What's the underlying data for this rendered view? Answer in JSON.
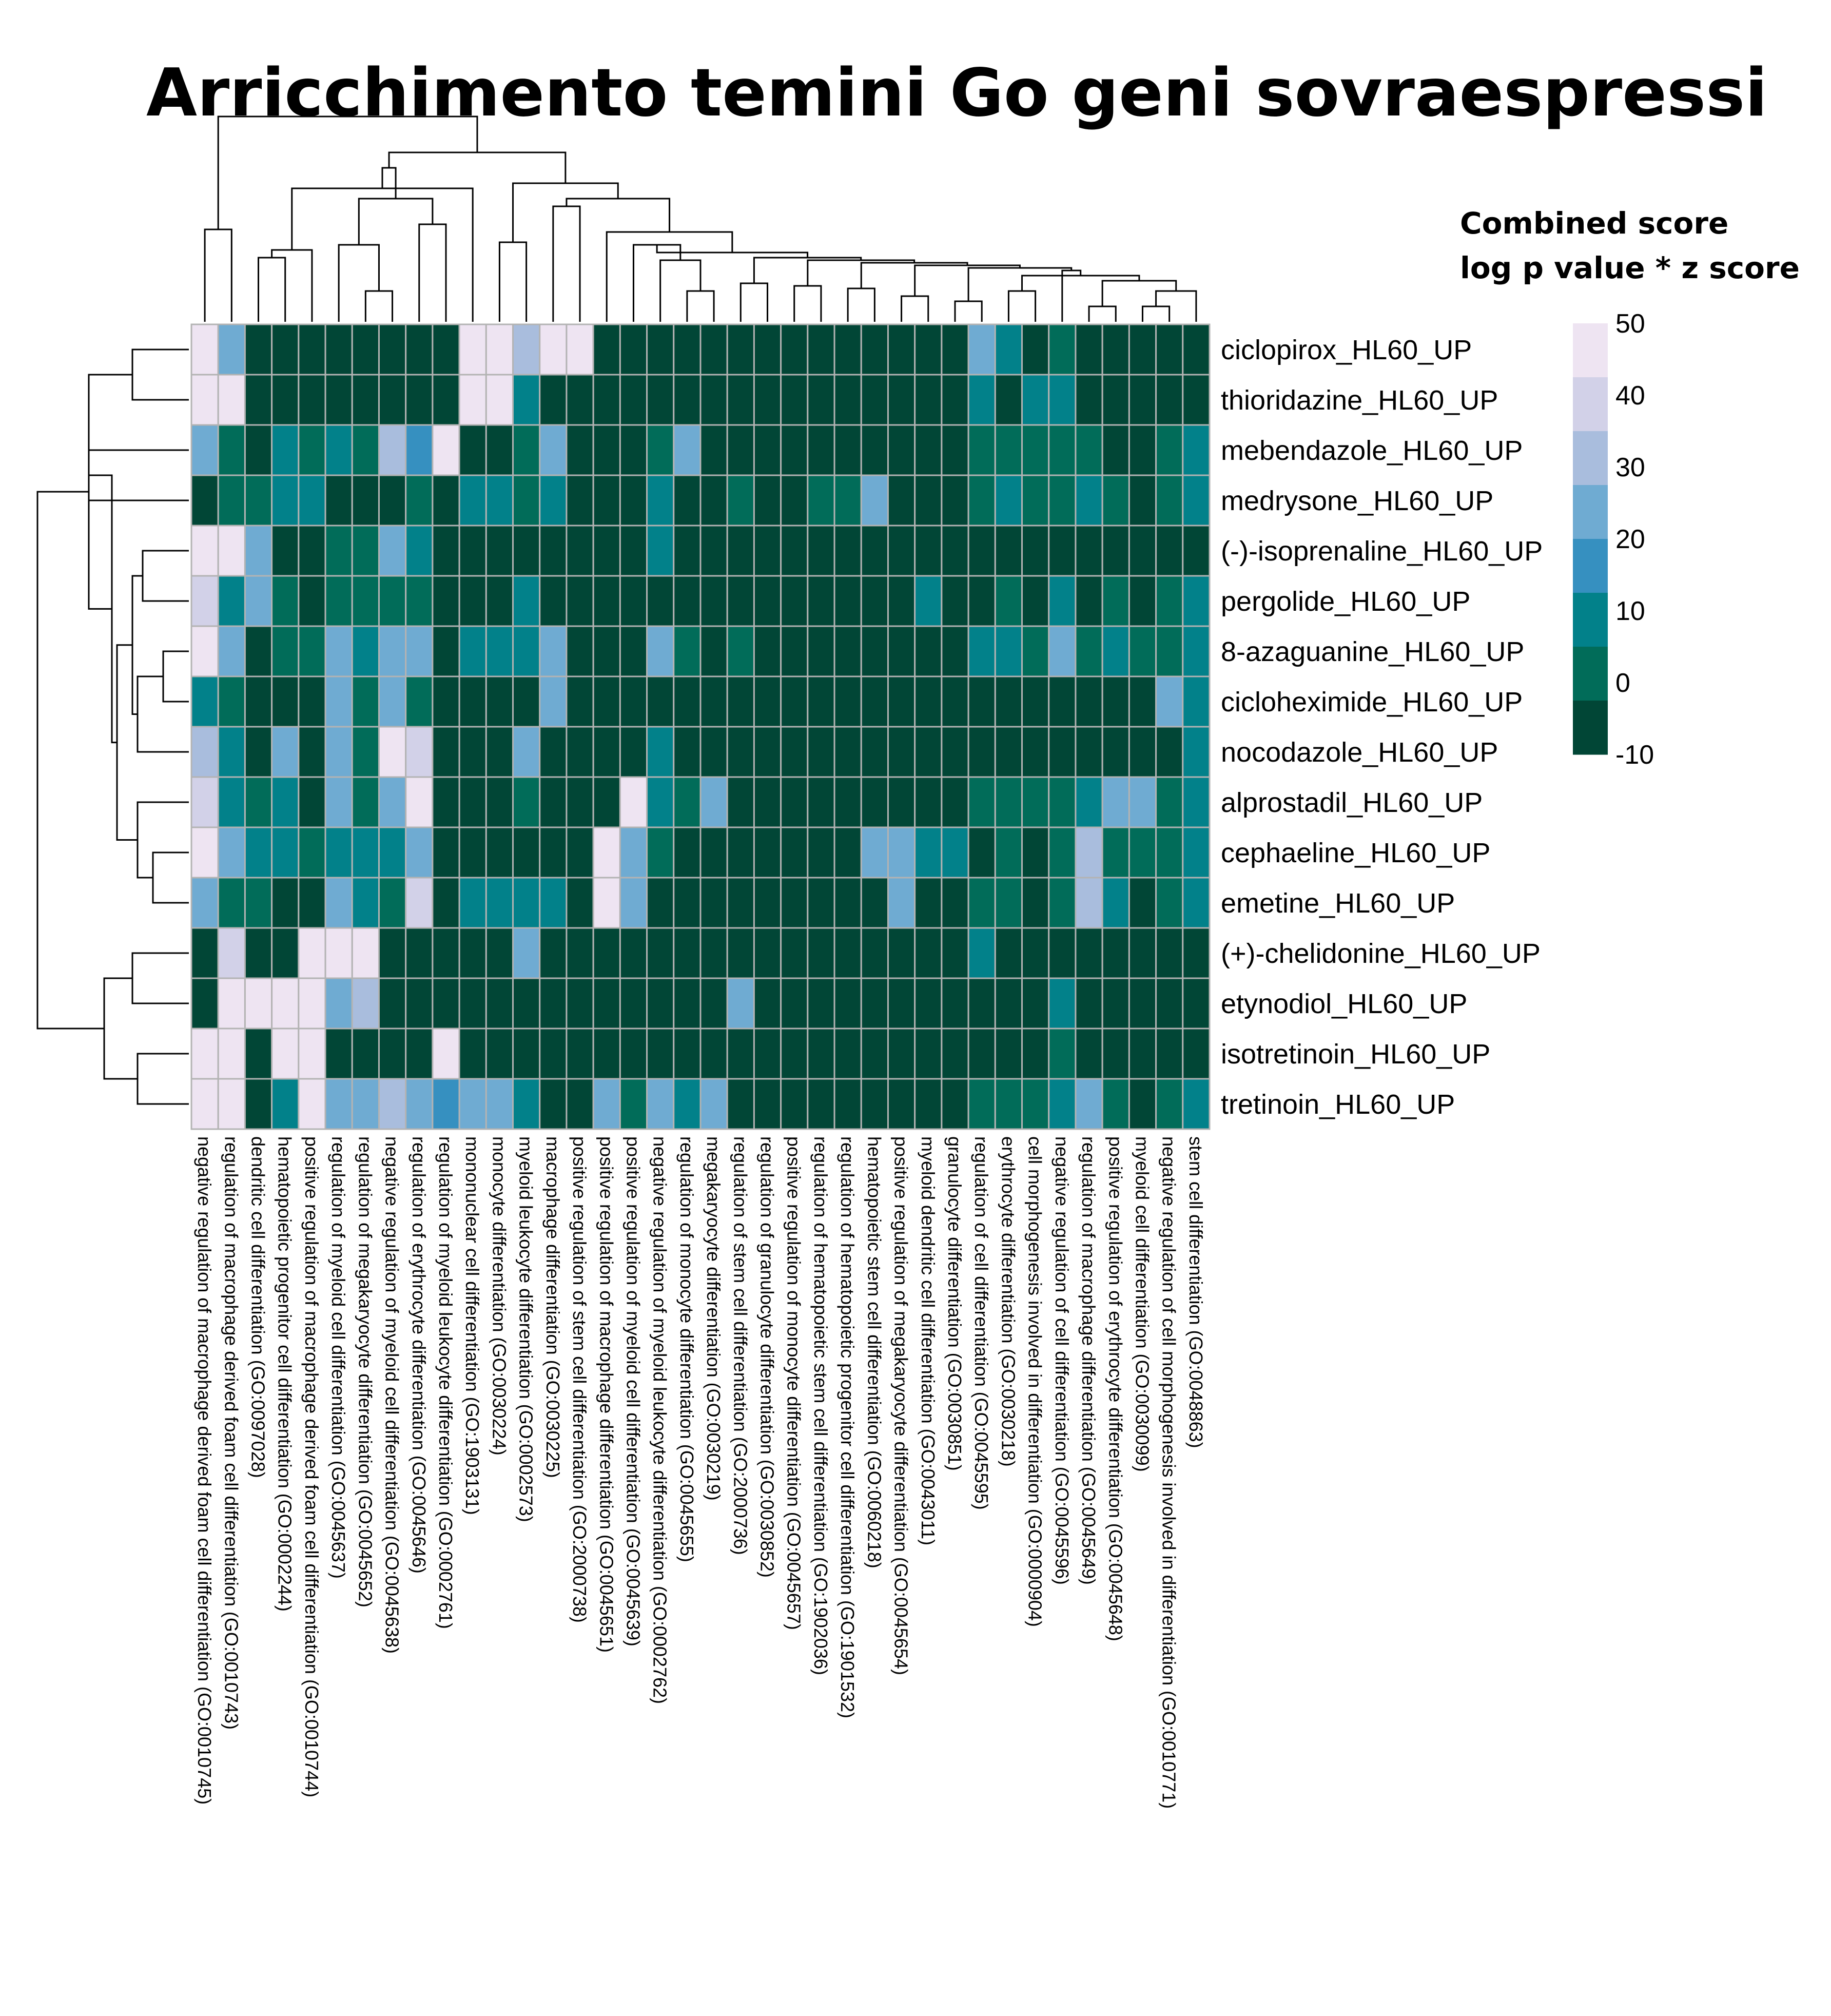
{
  "title": "Arricchimento temini Go geni sovraespressi",
  "legend": {
    "title_line1": "Combined score",
    "title_line2": "log p value * z score",
    "ticks": [
      "50",
      "40",
      "30",
      "20",
      "10",
      "0",
      "-10"
    ],
    "colors": [
      "#eee4f2",
      "#d2d1e8",
      "#a9bddd",
      "#6fabd2",
      "#3690c0",
      "#02818a",
      "#016c59",
      "#014636"
    ]
  },
  "chart_data": {
    "type": "heatmap",
    "title": "Arricchimento temini Go geni sovraespressi",
    "legend_title": "Combined score log p value * z score",
    "value_range": [
      -10,
      50
    ],
    "rows": [
      "ciclopirox_HL60_UP",
      "thioridazine_HL60_UP",
      "mebendazole_HL60_UP",
      "medrysone_HL60_UP",
      "(-)-isoprenaline_HL60_UP",
      "pergolide_HL60_UP",
      "8-azaguanine_HL60_UP",
      "cicloheximide_HL60_UP",
      "nocodazole_HL60_UP",
      "alprostadil_HL60_UP",
      "cephaeline_HL60_UP",
      "emetine_HL60_UP",
      "(+)-chelidonine_HL60_UP",
      "etynodiol_HL60_UP",
      "isotretinoin_HL60_UP",
      "tretinoin_HL60_UP"
    ],
    "columns": [
      "negative regulation of macrophage derived foam cell differentiation (GO:0010745)",
      "regulation of macrophage derived foam cell differentiation (GO:0010743)",
      "dendritic cell differentiation (GO:0097028)",
      "hematopoietic progenitor cell differentiation (GO:0002244)",
      "positive regulation of macrophage derived foam cell differentiation (GO:0010744)",
      "regulation of myeloid cell differentiation (GO:0045637)",
      "regulation of megakaryocyte differentiation (GO:0045652)",
      "negative regulation of myeloid cell differentiation (GO:0045638)",
      "regulation of erythrocyte differentiation (GO:0045646)",
      "regulation of myeloid leukocyte differentiation (GO:0002761)",
      "mononuclear cell differentiation (GO:1903131)",
      "monocyte differentiation (GO:0030224)",
      "myeloid leukocyte differentiation (GO:0002573)",
      "macrophage differentiation (GO:0030225)",
      "positive regulation of stem cell differentiation (GO:2000738)",
      "positive regulation of macrophage differentiation (GO:0045651)",
      "positive regulation of myeloid cell differentiation (GO:0045639)",
      "negative regulation of myeloid leukocyte differentiation (GO:0002762)",
      "regulation of monocyte differentiation (GO:0045655)",
      "megakaryocyte differentiation (GO:0030219)",
      "regulation of stem cell differentiation (GO:2000736)",
      "regulation of granulocyte differentiation (GO:0030852)",
      "positive regulation of monocyte differentiation (GO:0045657)",
      "regulation of hematopoietic stem cell differentiation (GO:1902036)",
      "regulation of hematopoietic progenitor cell differentiation (GO:1901532)",
      "hematopoietic stem cell differentiation (GO:0060218)",
      "positive regulation of megakaryocyte differentiation (GO:0045654)",
      "myeloid dendritic cell differentiation (GO:0043011)",
      "granulocyte differentiation (GO:0030851)",
      "regulation of cell differentiation (GO:0045595)",
      "erythrocyte differentiation (GO:0030218)",
      "cell morphogenesis involved in differentiation (GO:0000904)",
      "negative regulation of cell differentiation (GO:0045596)",
      "regulation of macrophage differentiation (GO:0045649)",
      "positive regulation of erythrocyte differentiation (GO:0045648)",
      "myeloid cell differentiation (GO:0030099)",
      "negative regulation of cell morphogenesis involved in differentiation (GO:0010771)",
      "stem cell differentiation (GO:0048863)"
    ],
    "values": [
      [
        45,
        20,
        -8,
        -8,
        -8,
        -8,
        -8,
        -8,
        -8,
        -8,
        45,
        45,
        30,
        45,
        45,
        -8,
        -8,
        -8,
        -8,
        -8,
        -8,
        -8,
        -8,
        -8,
        -8,
        -8,
        -8,
        -8,
        -8,
        20,
        10,
        -8,
        0,
        -8,
        -8,
        -8,
        -8,
        -8
      ],
      [
        45,
        45,
        -8,
        -8,
        -8,
        -8,
        -8,
        -8,
        -8,
        -8,
        45,
        45,
        10,
        -8,
        -8,
        -8,
        -8,
        -8,
        -8,
        -8,
        -8,
        -8,
        -8,
        -8,
        -8,
        -8,
        -8,
        -8,
        -8,
        5,
        -8,
        10,
        10,
        -8,
        -8,
        -8,
        -8,
        -8
      ],
      [
        20,
        0,
        -8,
        10,
        0,
        5,
        0,
        30,
        15,
        45,
        -8,
        -8,
        0,
        20,
        -8,
        -8,
        -8,
        0,
        20,
        -8,
        -8,
        -8,
        -8,
        -8,
        -8,
        -8,
        -8,
        -8,
        -8,
        0,
        0,
        0,
        0,
        0,
        -8,
        -8,
        0,
        5
      ],
      [
        -8,
        0,
        0,
        10,
        5,
        -8,
        -8,
        -8,
        0,
        -8,
        5,
        5,
        0,
        5,
        -8,
        -8,
        -8,
        10,
        -8,
        -8,
        0,
        -8,
        -8,
        0,
        0,
        20,
        -8,
        -8,
        -8,
        0,
        10,
        0,
        0,
        10,
        0,
        -8,
        0,
        5
      ],
      [
        45,
        45,
        20,
        -8,
        -8,
        0,
        0,
        20,
        10,
        -8,
        -8,
        -8,
        -8,
        -8,
        -8,
        -8,
        -8,
        5,
        -8,
        -8,
        -8,
        -8,
        -8,
        -8,
        -8,
        -8,
        -8,
        -8,
        -8,
        -8,
        -8,
        -8,
        -8,
        -8,
        -8,
        -8,
        -8,
        -8
      ],
      [
        35,
        10,
        20,
        0,
        -8,
        0,
        0,
        0,
        0,
        -8,
        -8,
        -8,
        10,
        -8,
        -8,
        -8,
        -8,
        -8,
        -8,
        -8,
        -8,
        -8,
        -8,
        -8,
        -8,
        -8,
        -8,
        10,
        -8,
        -8,
        0,
        -8,
        10,
        -8,
        0,
        -8,
        0,
        5
      ],
      [
        45,
        25,
        -8,
        0,
        0,
        20,
        10,
        25,
        25,
        -8,
        10,
        5,
        5,
        25,
        -8,
        -8,
        -8,
        20,
        0,
        -8,
        0,
        -8,
        -8,
        -8,
        -8,
        -8,
        -8,
        -8,
        -8,
        5,
        10,
        0,
        20,
        0,
        10,
        0,
        0,
        5
      ],
      [
        10,
        0,
        -8,
        -8,
        -8,
        25,
        0,
        25,
        0,
        -8,
        -8,
        -8,
        -8,
        20,
        -8,
        -8,
        -8,
        -8,
        -8,
        -8,
        -8,
        -8,
        -8,
        -8,
        -8,
        -8,
        -8,
        -8,
        -8,
        -8,
        -8,
        -8,
        -8,
        -8,
        -8,
        -8,
        20,
        5
      ],
      [
        30,
        10,
        -8,
        20,
        -8,
        20,
        0,
        45,
        35,
        -8,
        -8,
        -8,
        20,
        -8,
        -8,
        -8,
        -8,
        10,
        -8,
        -8,
        -8,
        -8,
        -8,
        -8,
        -8,
        -8,
        -8,
        -8,
        -8,
        -8,
        -8,
        -8,
        -8,
        -8,
        -8,
        -8,
        -8,
        5
      ],
      [
        35,
        10,
        0,
        5,
        -8,
        25,
        0,
        20,
        45,
        -8,
        -8,
        -8,
        0,
        -8,
        -8,
        -8,
        45,
        10,
        0,
        20,
        -8,
        -8,
        -8,
        -8,
        -8,
        -8,
        -8,
        -8,
        -8,
        0,
        0,
        0,
        0,
        10,
        25,
        20,
        0,
        5
      ],
      [
        45,
        25,
        10,
        5,
        0,
        10,
        5,
        10,
        25,
        -8,
        -8,
        -8,
        -8,
        -8,
        -8,
        45,
        20,
        0,
        -8,
        -8,
        -8,
        -8,
        -8,
        -8,
        -8,
        20,
        20,
        10,
        10,
        -8,
        0,
        -8,
        0,
        30,
        0,
        0,
        0,
        5
      ],
      [
        20,
        0,
        0,
        -8,
        -8,
        20,
        10,
        0,
        35,
        -8,
        10,
        10,
        5,
        10,
        -8,
        45,
        20,
        -8,
        -8,
        -8,
        -8,
        -8,
        -8,
        -8,
        -8,
        -8,
        20,
        -8,
        -8,
        0,
        0,
        -8,
        0,
        30,
        10,
        -8,
        0,
        5
      ],
      [
        -8,
        40,
        -8,
        -8,
        45,
        45,
        45,
        -8,
        -8,
        -8,
        -8,
        -8,
        20,
        -8,
        -8,
        -8,
        -8,
        -8,
        -8,
        -8,
        -8,
        -8,
        -8,
        -8,
        -8,
        -8,
        -8,
        -8,
        -8,
        10,
        -8,
        -8,
        -8,
        -8,
        -8,
        -8,
        -8,
        -8
      ],
      [
        -8,
        45,
        45,
        45,
        45,
        25,
        30,
        -8,
        -8,
        -8,
        -8,
        -8,
        -8,
        -8,
        -8,
        -8,
        -8,
        -8,
        -8,
        -8,
        20,
        -8,
        -8,
        -8,
        -8,
        -8,
        -8,
        -8,
        -8,
        -8,
        -8,
        -8,
        10,
        -8,
        -8,
        -8,
        -8,
        -8
      ],
      [
        45,
        45,
        -8,
        45,
        45,
        -8,
        -8,
        -8,
        -8,
        45,
        -8,
        -8,
        -8,
        -8,
        -8,
        -8,
        -8,
        -8,
        -8,
        -8,
        -8,
        -8,
        -8,
        -8,
        -8,
        -8,
        -8,
        -8,
        -8,
        -8,
        -8,
        -8,
        0,
        -8,
        -8,
        -8,
        -8,
        -8
      ],
      [
        45,
        45,
        -8,
        10,
        45,
        25,
        25,
        30,
        20,
        15,
        20,
        20,
        10,
        -8,
        -8,
        25,
        0,
        20,
        10,
        25,
        -8,
        -8,
        -8,
        -8,
        -8,
        -8,
        -8,
        -8,
        -8,
        0,
        0,
        0,
        10,
        25,
        0,
        -8,
        0,
        5
      ]
    ]
  }
}
